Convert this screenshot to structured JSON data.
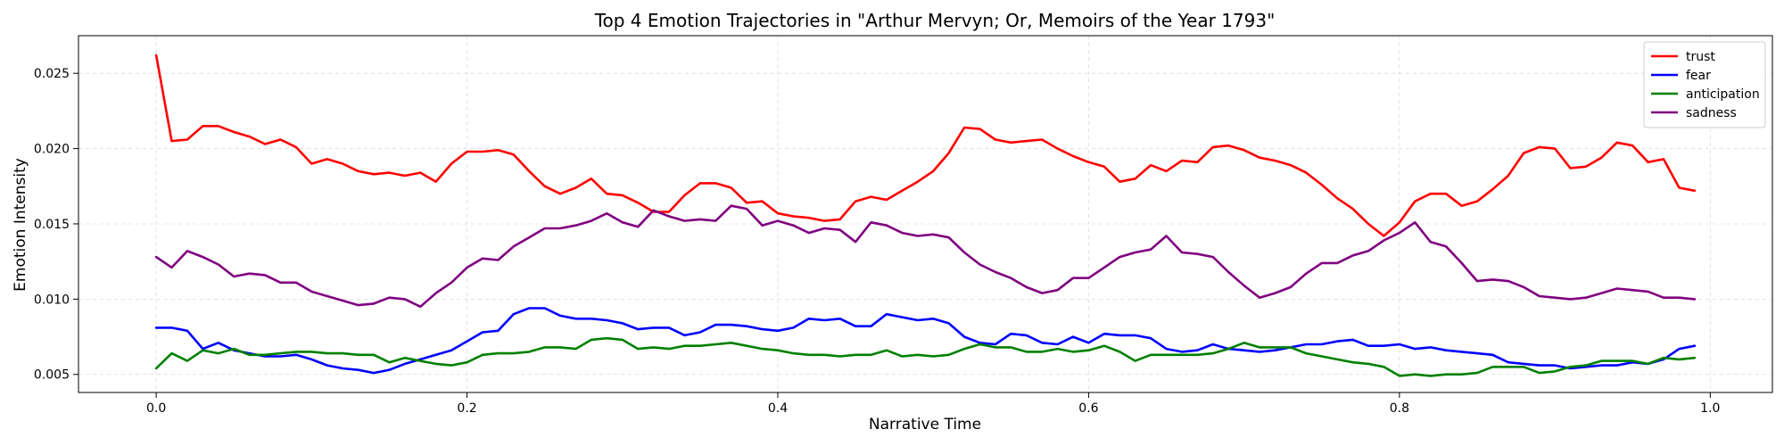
{
  "chart_data": {
    "type": "line",
    "title": "Top 4 Emotion Trajectories in \"Arthur Mervyn; Or, Memoirs of the Year 1793\"",
    "xlabel": "Narrative Time",
    "ylabel": "Emotion Intensity",
    "xlim": [
      -0.05,
      1.04
    ],
    "ylim": [
      0.0038,
      0.0275
    ],
    "x_ticks": [
      "0.0",
      "0.2",
      "0.4",
      "0.6",
      "0.8",
      "1.0"
    ],
    "x_tick_values": [
      0.0,
      0.2,
      0.4,
      0.6,
      0.8,
      1.0
    ],
    "y_ticks": [
      "0.005",
      "0.010",
      "0.015",
      "0.020",
      "0.025"
    ],
    "y_tick_values": [
      0.005,
      0.01,
      0.015,
      0.02,
      0.025
    ],
    "grid": true,
    "legend_position": "top-right",
    "x": [
      0.0,
      0.01,
      0.02,
      0.03,
      0.04,
      0.05,
      0.06,
      0.07,
      0.08,
      0.09,
      0.1,
      0.11,
      0.12,
      0.13,
      0.14,
      0.15,
      0.16,
      0.17,
      0.18,
      0.19,
      0.2,
      0.21,
      0.22,
      0.23,
      0.24,
      0.25,
      0.26,
      0.27,
      0.28,
      0.29,
      0.3,
      0.31,
      0.32,
      0.33,
      0.34,
      0.35,
      0.36,
      0.37,
      0.38,
      0.39,
      0.4,
      0.41,
      0.42,
      0.43,
      0.44,
      0.45,
      0.46,
      0.47,
      0.48,
      0.49,
      0.5,
      0.51,
      0.52,
      0.53,
      0.54,
      0.55,
      0.56,
      0.57,
      0.58,
      0.59,
      0.6,
      0.61,
      0.62,
      0.63,
      0.64,
      0.65,
      0.66,
      0.67,
      0.68,
      0.69,
      0.7,
      0.71,
      0.72,
      0.73,
      0.74,
      0.75,
      0.76,
      0.77,
      0.78,
      0.79,
      0.8,
      0.81,
      0.82,
      0.83,
      0.84,
      0.85,
      0.86,
      0.87,
      0.88,
      0.89,
      0.9,
      0.91,
      0.92,
      0.93,
      0.94,
      0.95,
      0.96,
      0.97,
      0.98,
      0.99
    ],
    "series": [
      {
        "name": "trust",
        "color": "#ff0000",
        "values": [
          0.0262,
          0.0205,
          0.0206,
          0.0215,
          0.0215,
          0.0211,
          0.0208,
          0.0203,
          0.0206,
          0.0201,
          0.019,
          0.0193,
          0.019,
          0.0185,
          0.0183,
          0.0184,
          0.0182,
          0.0184,
          0.0178,
          0.019,
          0.0198,
          0.0198,
          0.0199,
          0.0196,
          0.0185,
          0.0175,
          0.017,
          0.0174,
          0.018,
          0.017,
          0.0169,
          0.0164,
          0.0158,
          0.0158,
          0.0169,
          0.0177,
          0.0177,
          0.0174,
          0.0164,
          0.0165,
          0.0157,
          0.0155,
          0.0154,
          0.0152,
          0.0153,
          0.0165,
          0.0168,
          0.0166,
          0.0172,
          0.0178,
          0.0185,
          0.0197,
          0.0214,
          0.0213,
          0.0206,
          0.0204,
          0.0205,
          0.0206,
          0.02,
          0.0195,
          0.0191,
          0.0188,
          0.0178,
          0.018,
          0.0189,
          0.0185,
          0.0192,
          0.0191,
          0.0201,
          0.0202,
          0.0199,
          0.0194,
          0.0192,
          0.0189,
          0.0184,
          0.0176,
          0.0167,
          0.016,
          0.015,
          0.0142,
          0.0151,
          0.0165,
          0.017,
          0.017,
          0.0162,
          0.0165,
          0.0173,
          0.0182,
          0.0197,
          0.0201,
          0.02,
          0.0187,
          0.0188,
          0.0194,
          0.0204,
          0.0202,
          0.0191,
          0.0193,
          0.0174,
          0.0172
        ]
      },
      {
        "name": "fear",
        "color": "#0000ff",
        "values": [
          0.0081,
          0.0081,
          0.0079,
          0.0067,
          0.0071,
          0.0066,
          0.0064,
          0.0062,
          0.0062,
          0.0063,
          0.006,
          0.0056,
          0.0054,
          0.0053,
          0.0051,
          0.0053,
          0.0057,
          0.006,
          0.0063,
          0.0066,
          0.0072,
          0.0078,
          0.0079,
          0.009,
          0.0094,
          0.0094,
          0.0089,
          0.0087,
          0.0087,
          0.0086,
          0.0084,
          0.008,
          0.0081,
          0.0081,
          0.0076,
          0.0078,
          0.0083,
          0.0083,
          0.0082,
          0.008,
          0.0079,
          0.0081,
          0.0087,
          0.0086,
          0.0087,
          0.0082,
          0.0082,
          0.009,
          0.0088,
          0.0086,
          0.0087,
          0.0084,
          0.0075,
          0.0071,
          0.007,
          0.0077,
          0.0076,
          0.0071,
          0.007,
          0.0075,
          0.0071,
          0.0077,
          0.0076,
          0.0076,
          0.0074,
          0.0067,
          0.0065,
          0.0066,
          0.007,
          0.0067,
          0.0066,
          0.0065,
          0.0066,
          0.0068,
          0.007,
          0.007,
          0.0072,
          0.0073,
          0.0069,
          0.0069,
          0.007,
          0.0067,
          0.0068,
          0.0066,
          0.0065,
          0.0064,
          0.0063,
          0.0058,
          0.0057,
          0.0056,
          0.0056,
          0.0054,
          0.0055,
          0.0056,
          0.0056,
          0.0058,
          0.0057,
          0.006,
          0.0067,
          0.0069
        ]
      },
      {
        "name": "anticipation",
        "color": "#008000",
        "values": [
          0.0054,
          0.0064,
          0.0059,
          0.0066,
          0.0064,
          0.0067,
          0.0063,
          0.0063,
          0.0064,
          0.0065,
          0.0065,
          0.0064,
          0.0064,
          0.0063,
          0.0063,
          0.0058,
          0.0061,
          0.0059,
          0.0057,
          0.0056,
          0.0058,
          0.0063,
          0.0064,
          0.0064,
          0.0065,
          0.0068,
          0.0068,
          0.0067,
          0.0073,
          0.0074,
          0.0073,
          0.0067,
          0.0068,
          0.0067,
          0.0069,
          0.0069,
          0.007,
          0.0071,
          0.0069,
          0.0067,
          0.0066,
          0.0064,
          0.0063,
          0.0063,
          0.0062,
          0.0063,
          0.0063,
          0.0066,
          0.0062,
          0.0063,
          0.0062,
          0.0063,
          0.0067,
          0.007,
          0.0068,
          0.0068,
          0.0065,
          0.0065,
          0.0067,
          0.0065,
          0.0066,
          0.0069,
          0.0065,
          0.0059,
          0.0063,
          0.0063,
          0.0063,
          0.0063,
          0.0064,
          0.0067,
          0.0071,
          0.0068,
          0.0068,
          0.0068,
          0.0064,
          0.0062,
          0.006,
          0.0058,
          0.0057,
          0.0055,
          0.0049,
          0.005,
          0.0049,
          0.005,
          0.005,
          0.0051,
          0.0055,
          0.0055,
          0.0055,
          0.0051,
          0.0052,
          0.0055,
          0.0056,
          0.0059,
          0.0059,
          0.0059,
          0.0057,
          0.0061,
          0.006,
          0.0061
        ]
      },
      {
        "name": "sadness",
        "color": "#800080",
        "values": [
          0.0128,
          0.0121,
          0.0132,
          0.0128,
          0.0123,
          0.0115,
          0.0117,
          0.0116,
          0.0111,
          0.0111,
          0.0105,
          0.0102,
          0.0099,
          0.0096,
          0.0097,
          0.0101,
          0.01,
          0.0095,
          0.0104,
          0.0111,
          0.0121,
          0.0127,
          0.0126,
          0.0135,
          0.0141,
          0.0147,
          0.0147,
          0.0149,
          0.0152,
          0.0157,
          0.0151,
          0.0148,
          0.0159,
          0.0155,
          0.0152,
          0.0153,
          0.0152,
          0.0162,
          0.016,
          0.0149,
          0.0152,
          0.0149,
          0.0144,
          0.0147,
          0.0146,
          0.0138,
          0.0151,
          0.0149,
          0.0144,
          0.0142,
          0.0143,
          0.0141,
          0.0131,
          0.0123,
          0.0118,
          0.0114,
          0.0108,
          0.0104,
          0.0106,
          0.0114,
          0.0114,
          0.0121,
          0.0128,
          0.0131,
          0.0133,
          0.0142,
          0.0131,
          0.013,
          0.0128,
          0.0118,
          0.0109,
          0.0101,
          0.0104,
          0.0108,
          0.0117,
          0.0124,
          0.0124,
          0.0129,
          0.0132,
          0.0139,
          0.0144,
          0.0151,
          0.0138,
          0.0135,
          0.0124,
          0.0112,
          0.0113,
          0.0112,
          0.0108,
          0.0102,
          0.0101,
          0.01,
          0.0101,
          0.0104,
          0.0107,
          0.0106,
          0.0105,
          0.0101,
          0.0101,
          0.01
        ]
      }
    ]
  }
}
